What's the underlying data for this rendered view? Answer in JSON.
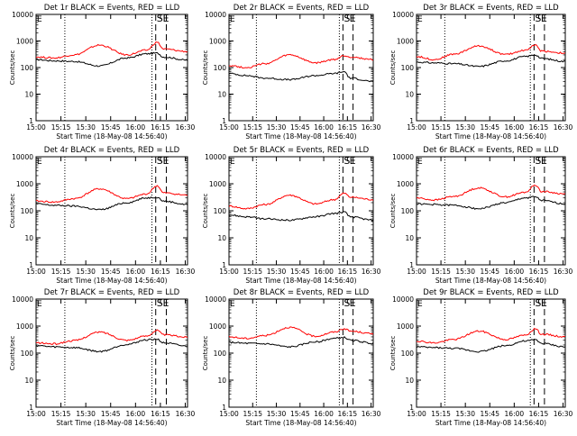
{
  "shared": {
    "xlabel": "Start Time (18-May-08 14:56:40)",
    "ylabel": "Counts/sec",
    "x_ticks": [
      "15:00",
      "15:15",
      "15:30",
      "15:45",
      "16:00",
      "16:15",
      "16:30"
    ],
    "y_ticks": [
      "1",
      "10",
      "100",
      "1000",
      "10000"
    ],
    "marker_s": "S",
    "marker_e": "E",
    "marker_left": "E"
  },
  "chart_data": [
    {
      "type": "line",
      "title": "Det 1r BLACK = Events, RED = LLD",
      "xlabel": "Start Time (18-May-08 14:56:40)",
      "ylabel": "Counts/sec",
      "x_ticks": [
        "15:00",
        "15:15",
        "15:30",
        "15:45",
        "16:00",
        "16:15",
        "16:30"
      ],
      "y_scale": "log",
      "ylim": [
        1,
        10000
      ],
      "colors": {
        "events": "#000000",
        "lld": "#ff0000"
      },
      "series": [
        {
          "name": "Events",
          "values": [
            200,
            180,
            170,
            115,
            230,
            330,
            350,
            250,
            190
          ]
        },
        {
          "name": "LLD",
          "values": [
            250,
            230,
            300,
            700,
            300,
            450,
            900,
            500,
            400
          ]
        }
      ]
    },
    {
      "type": "line",
      "title": "Det 2r BLACK = Events, RED = LLD",
      "xlabel": "Start Time (18-May-08 14:56:40)",
      "ylabel": "Counts/sec",
      "x_ticks": [
        "15:00",
        "15:15",
        "15:30",
        "15:45",
        "16:00",
        "16:15",
        "16:30"
      ],
      "y_scale": "log",
      "ylim": [
        1,
        10000
      ],
      "colors": {
        "events": "#000000",
        "lld": "#ff0000"
      },
      "series": [
        {
          "name": "Events",
          "values": [
            60,
            50,
            40,
            35,
            50,
            60,
            70,
            40,
            30
          ]
        },
        {
          "name": "LLD",
          "values": [
            120,
            100,
            140,
            300,
            150,
            200,
            280,
            250,
            200
          ]
        }
      ]
    },
    {
      "type": "line",
      "title": "Det 3r BLACK = Events, RED = LLD",
      "xlabel": "Start Time (18-May-08 14:56:40)",
      "ylabel": "Counts/sec",
      "x_ticks": [
        "15:00",
        "15:15",
        "15:30",
        "15:45",
        "16:00",
        "16:15",
        "16:30"
      ],
      "y_scale": "log",
      "ylim": [
        1,
        10000
      ],
      "colors": {
        "events": "#000000",
        "lld": "#ff0000"
      },
      "series": [
        {
          "name": "Events",
          "values": [
            160,
            150,
            140,
            110,
            180,
            260,
            300,
            220,
            170
          ]
        },
        {
          "name": "LLD",
          "values": [
            260,
            200,
            320,
            650,
            310,
            450,
            700,
            420,
            350
          ]
        }
      ]
    },
    {
      "type": "line",
      "title": "Det 4r BLACK = Events, RED = LLD",
      "xlabel": "Start Time (18-May-08 14:56:40)",
      "ylabel": "Counts/sec",
      "x_ticks": [
        "15:00",
        "15:15",
        "15:30",
        "15:45",
        "16:00",
        "16:15",
        "16:30"
      ],
      "y_scale": "log",
      "ylim": [
        1,
        10000
      ],
      "colors": {
        "events": "#000000",
        "lld": "#ff0000"
      },
      "series": [
        {
          "name": "Events",
          "values": [
            180,
            160,
            150,
            110,
            200,
            300,
            320,
            230,
            170
          ]
        },
        {
          "name": "LLD",
          "values": [
            230,
            210,
            280,
            650,
            280,
            420,
            850,
            460,
            380
          ]
        }
      ]
    },
    {
      "type": "line",
      "title": "Det 5r BLACK = Events, RED = LLD",
      "xlabel": "Start Time (18-May-08 14:56:40)",
      "ylabel": "Counts/sec",
      "x_ticks": [
        "15:00",
        "15:15",
        "15:30",
        "15:45",
        "16:00",
        "16:15",
        "16:30"
      ],
      "y_scale": "log",
      "ylim": [
        1,
        10000
      ],
      "colors": {
        "events": "#000000",
        "lld": "#ff0000"
      },
      "series": [
        {
          "name": "Events",
          "values": [
            70,
            60,
            50,
            45,
            60,
            80,
            90,
            60,
            45
          ]
        },
        {
          "name": "LLD",
          "values": [
            150,
            120,
            170,
            380,
            180,
            260,
            450,
            320,
            260
          ]
        }
      ]
    },
    {
      "type": "line",
      "title": "Det 6r BLACK = Events, RED = LLD",
      "xlabel": "Start Time (18-May-08 14:56:40)",
      "ylabel": "Counts/sec",
      "x_ticks": [
        "15:00",
        "15:15",
        "15:30",
        "15:45",
        "16:00",
        "16:15",
        "16:30"
      ],
      "y_scale": "log",
      "ylim": [
        1,
        10000
      ],
      "colors": {
        "events": "#000000",
        "lld": "#ff0000"
      },
      "series": [
        {
          "name": "Events",
          "values": [
            180,
            170,
            160,
            120,
            200,
            300,
            330,
            240,
            180
          ]
        },
        {
          "name": "LLD",
          "values": [
            300,
            250,
            340,
            700,
            330,
            480,
            900,
            520,
            420
          ]
        }
      ]
    },
    {
      "type": "line",
      "title": "Det 7r BLACK = Events, RED = LLD",
      "xlabel": "Start Time (18-May-08 14:56:40)",
      "ylabel": "Counts/sec",
      "x_ticks": [
        "15:00",
        "15:15",
        "15:30",
        "15:45",
        "16:00",
        "16:15",
        "16:30"
      ],
      "y_scale": "log",
      "ylim": [
        1,
        10000
      ],
      "colors": {
        "events": "#000000",
        "lld": "#ff0000"
      },
      "series": [
        {
          "name": "Events",
          "values": [
            190,
            170,
            160,
            115,
            210,
            310,
            330,
            240,
            180
          ]
        },
        {
          "name": "LLD",
          "values": [
            240,
            220,
            290,
            600,
            300,
            430,
            700,
            480,
            390
          ]
        }
      ]
    },
    {
      "type": "line",
      "title": "Det 8r BLACK = Events, RED = LLD",
      "xlabel": "Start Time (18-May-08 14:56:40)",
      "ylabel": "Counts/sec",
      "x_ticks": [
        "15:00",
        "15:15",
        "15:30",
        "15:45",
        "16:00",
        "16:15",
        "16:30"
      ],
      "y_scale": "log",
      "ylim": [
        1,
        10000
      ],
      "colors": {
        "events": "#000000",
        "lld": "#ff0000"
      },
      "series": [
        {
          "name": "Events",
          "values": [
            250,
            230,
            220,
            170,
            260,
            350,
            380,
            300,
            230
          ]
        },
        {
          "name": "LLD",
          "values": [
            400,
            350,
            450,
            900,
            420,
            600,
            800,
            650,
            520
          ]
        }
      ]
    },
    {
      "type": "line",
      "title": "Det 9r BLACK = Events, RED = LLD",
      "xlabel": "Start Time (18-May-08 14:56:40)",
      "ylabel": "Counts/sec",
      "x_ticks": [
        "15:00",
        "15:15",
        "15:30",
        "15:45",
        "16:00",
        "16:15",
        "16:30"
      ],
      "y_scale": "log",
      "ylim": [
        1,
        10000
      ],
      "colors": {
        "events": "#000000",
        "lld": "#ff0000"
      },
      "series": [
        {
          "name": "Events",
          "values": [
            170,
            160,
            150,
            115,
            190,
            280,
            310,
            230,
            170
          ]
        },
        {
          "name": "LLD",
          "values": [
            280,
            240,
            320,
            650,
            320,
            460,
            800,
            500,
            400
          ]
        }
      ]
    }
  ]
}
